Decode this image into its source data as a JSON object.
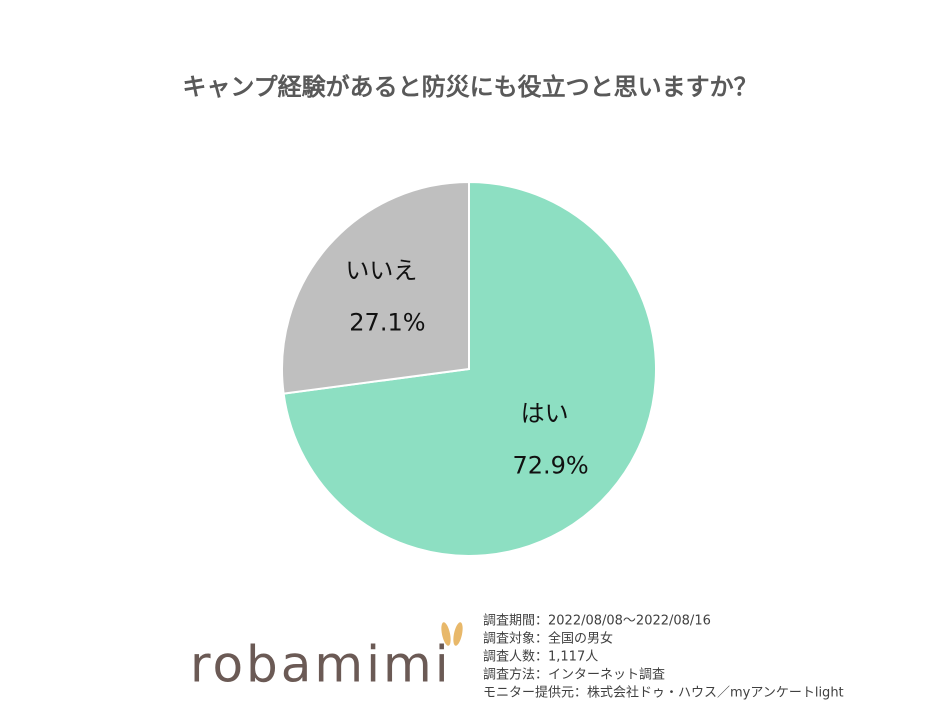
{
  "chart_data": {
    "type": "pie",
    "title": "キャンプ経験があると防災にも役立つと思いますか？",
    "categories": [
      "はい",
      "いいえ"
    ],
    "values": [
      72.9,
      27.1
    ],
    "value_labels": [
      "72.9%",
      "27.1%"
    ],
    "colors": [
      "#8ddfc2",
      "#bfbfbf"
    ]
  },
  "footer": {
    "logo": "robamimi",
    "notes": [
      "調査期間：2022/08/08～2022/08/16",
      "調査対象：全国の男女",
      "調査人数：1,117人",
      "調査方法：インターネット調査",
      "モニター提供元：株式会社ドゥ・ハウス／myアンケートlight"
    ]
  }
}
